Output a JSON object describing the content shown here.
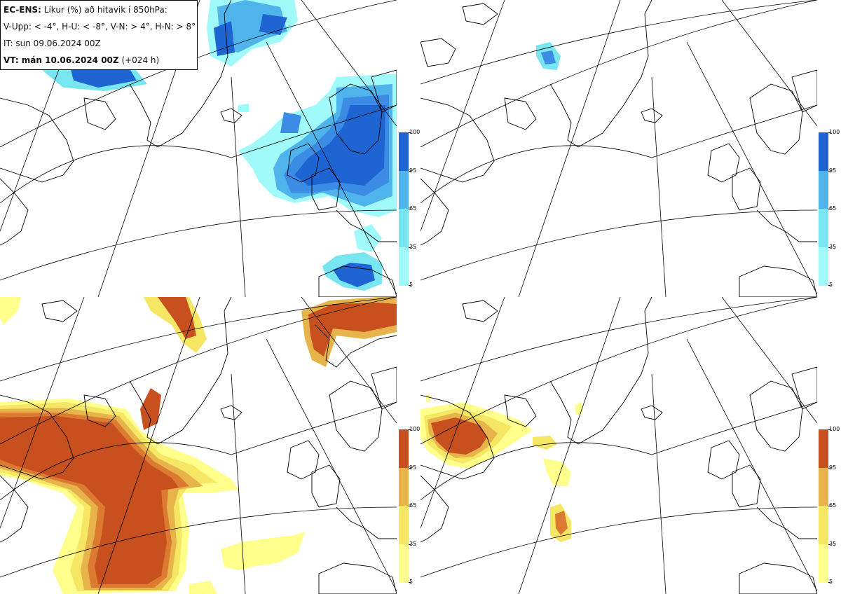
{
  "header": {
    "model": "EC-ENS:",
    "title": "Líkur (%) að hitavik í 850hPa:",
    "thresholds": "V-Upp: < -4°, H-U: < -8°, V-N: > 4°, H-N: > 8°",
    "initial_time": "IT: sun 09.06.2024 00Z",
    "valid_label": "VT: mán 10.06.2024 00Z",
    "valid_offset": "(+024 h)"
  },
  "legend": {
    "ticks": [
      "100",
      "95",
      "65",
      "35",
      "5"
    ],
    "cold_colors": [
      "#1e64d2",
      "#3c8ce6",
      "#50b4ec",
      "#78e6f0",
      "#a0fafa"
    ],
    "warm_colors": [
      "#c8501e",
      "#dc7a32",
      "#e6b44b",
      "#f5e664",
      "#ffff8c"
    ]
  },
  "panels": [
    {
      "id": "V-Upp",
      "scheme": "cold"
    },
    {
      "id": "H-U",
      "scheme": "cold"
    },
    {
      "id": "V-N",
      "scheme": "warm"
    },
    {
      "id": "H-N",
      "scheme": "warm"
    }
  ]
}
